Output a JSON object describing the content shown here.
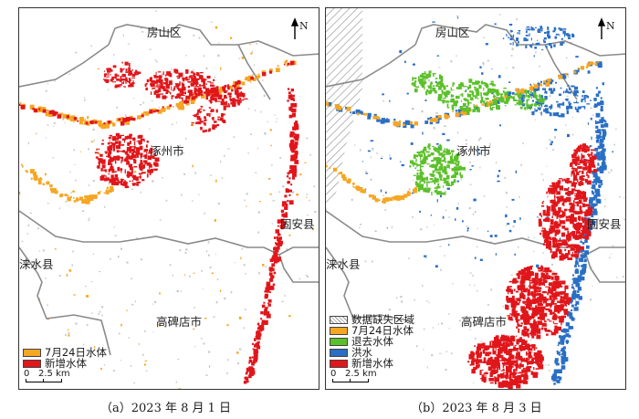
{
  "panels": [
    {
      "id": "a",
      "caption": "（a）2023 年 8 月 1 日",
      "places": {
        "fangshan": "房山区",
        "zhuozhou": "涿州市",
        "guan": "固安县",
        "laishui": "涞水县",
        "gaobeidian": "高碑店市"
      },
      "north": "N",
      "legend": [
        {
          "label": "7月24日水体",
          "color": "#f5a623"
        },
        {
          "label": "新增水体",
          "color": "#e0161b"
        }
      ],
      "scale": {
        "zero": "0",
        "dist": "2.5 km"
      },
      "no_data_hatch": false
    },
    {
      "id": "b",
      "caption": "（b）2023 年 8 月 3 日",
      "places": {
        "fangshan": "房山区",
        "zhuozhou": "涿州市",
        "guan": "固安县",
        "laishui": "涞水县",
        "gaobeidian": "高碑店市"
      },
      "north": "N",
      "legend": [
        {
          "label": "数据缺失区域",
          "color": "hatch"
        },
        {
          "label": "7月24日水体",
          "color": "#f5a623"
        },
        {
          "label": "退去水体",
          "color": "#5cc02a"
        },
        {
          "label": "洪水",
          "color": "#2a6fc4"
        },
        {
          "label": "新增水体",
          "color": "#e0161b"
        }
      ],
      "scale": {
        "zero": "0",
        "dist": "2.5 km"
      },
      "no_data_hatch": true
    }
  ],
  "colors": {
    "orange": "#f5a623",
    "red": "#e0161b",
    "green": "#5cc02a",
    "blue": "#2a6fc4",
    "boundary": "#8a8a8a"
  }
}
